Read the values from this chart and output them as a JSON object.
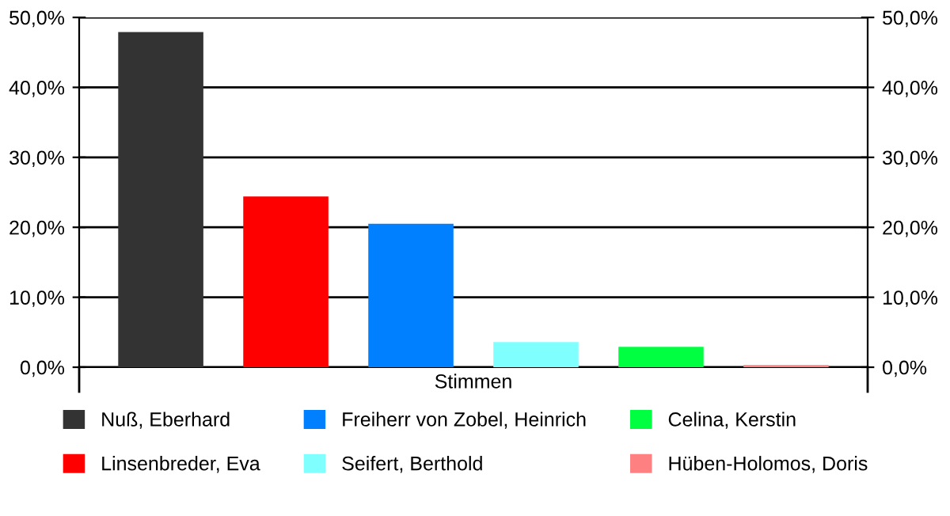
{
  "chart_data": {
    "type": "bar",
    "categories": [
      "Stimmen"
    ],
    "series": [
      {
        "name": "Nuß, Eberhard",
        "color": "#333333",
        "values": [
          47.9
        ]
      },
      {
        "name": "Linsenbreder, Eva",
        "color": "#ff0000",
        "values": [
          24.4
        ]
      },
      {
        "name": "Freiherr von Zobel, Heinrich",
        "color": "#0080ff",
        "values": [
          20.5
        ]
      },
      {
        "name": "Seifert, Berthold",
        "color": "#80ffff",
        "values": [
          3.6
        ]
      },
      {
        "name": "Celina, Kerstin",
        "color": "#00ff40",
        "values": [
          2.9
        ]
      },
      {
        "name": "Hüben-Holomos, Doris",
        "color": "#ff8080",
        "values": [
          0.3
        ]
      }
    ],
    "ylim": [
      0,
      50
    ],
    "yticks": [
      {
        "value": 0,
        "label": "0,0%"
      },
      {
        "value": 10,
        "label": "10,0%"
      },
      {
        "value": 20,
        "label": "20,0%"
      },
      {
        "value": 30,
        "label": "30,0%"
      },
      {
        "value": 40,
        "label": "40,0%"
      },
      {
        "value": 50,
        "label": "50,0%"
      }
    ],
    "grid": "y",
    "legend": "bottom"
  }
}
